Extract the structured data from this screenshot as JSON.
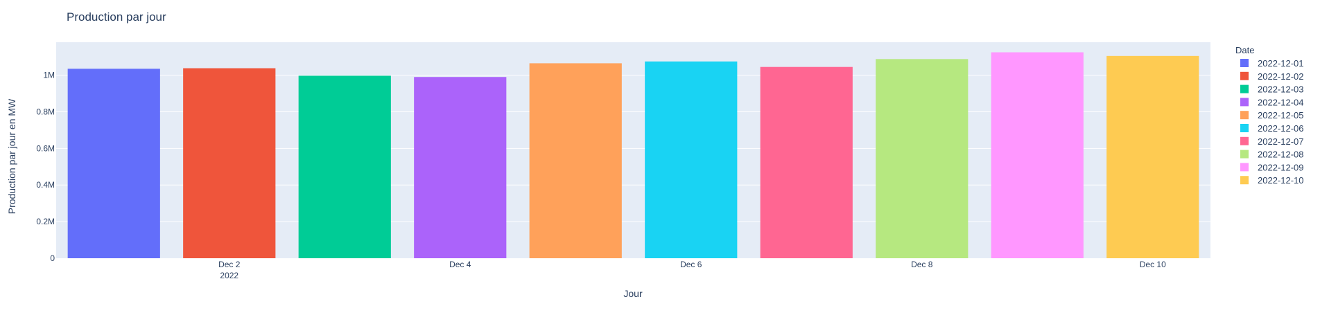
{
  "chart_data": {
    "type": "bar",
    "title": "Production par jour",
    "xlabel": "Jour",
    "ylabel": "Production par jour en MW",
    "legend_title": "Date",
    "legend_placement": "right",
    "grid": true,
    "ylim": [
      0,
      1180000
    ],
    "y_ticks": [
      {
        "value": 0,
        "label": "0"
      },
      {
        "value": 200000,
        "label": "0.2M"
      },
      {
        "value": 400000,
        "label": "0.4M"
      },
      {
        "value": 600000,
        "label": "0.6M"
      },
      {
        "value": 800000,
        "label": "0.8M"
      },
      {
        "value": 1000000,
        "label": "1M"
      }
    ],
    "x_ticks": [
      {
        "index": 1,
        "label": "Dec 2",
        "sublabel": "2022"
      },
      {
        "index": 3,
        "label": "Dec 4",
        "sublabel": ""
      },
      {
        "index": 5,
        "label": "Dec 6",
        "sublabel": ""
      },
      {
        "index": 7,
        "label": "Dec 8",
        "sublabel": ""
      },
      {
        "index": 9,
        "label": "Dec 10",
        "sublabel": ""
      }
    ],
    "categories": [
      "2022-12-01",
      "2022-12-02",
      "2022-12-03",
      "2022-12-04",
      "2022-12-05",
      "2022-12-06",
      "2022-12-07",
      "2022-12-08",
      "2022-12-09",
      "2022-12-10"
    ],
    "series": [
      {
        "name": "2022-12-01",
        "value": 1035000,
        "color": "#636efa"
      },
      {
        "name": "2022-12-02",
        "value": 1038000,
        "color": "#EF553B"
      },
      {
        "name": "2022-12-03",
        "value": 997000,
        "color": "#00cc96"
      },
      {
        "name": "2022-12-04",
        "value": 990000,
        "color": "#ab63fa"
      },
      {
        "name": "2022-12-05",
        "value": 1065000,
        "color": "#FFA15A"
      },
      {
        "name": "2022-12-06",
        "value": 1075000,
        "color": "#19d3f3"
      },
      {
        "name": "2022-12-07",
        "value": 1045000,
        "color": "#FF6692"
      },
      {
        "name": "2022-12-08",
        "value": 1088000,
        "color": "#B6E880"
      },
      {
        "name": "2022-12-09",
        "value": 1125000,
        "color": "#FF97FF"
      },
      {
        "name": "2022-12-10",
        "value": 1105000,
        "color": "#FECB52"
      }
    ]
  }
}
